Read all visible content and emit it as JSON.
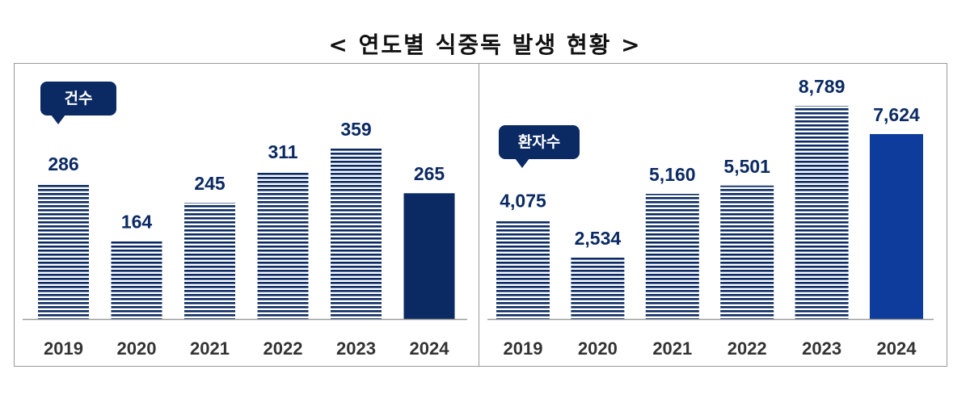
{
  "title": "< 연도별 식중독 발생 현황 >",
  "colors": {
    "bar": "#0b2a63",
    "highlight_left": "#0b2a63",
    "highlight_right": "#0d3c9c",
    "axis": "#9a9a9a"
  },
  "chart_data": [
    {
      "type": "bar",
      "badge": "건수",
      "categories": [
        "2019",
        "2020",
        "2021",
        "2022",
        "2023",
        "2024"
      ],
      "values": [
        286,
        164,
        245,
        311,
        359,
        265
      ],
      "value_labels": [
        "286",
        "164",
        "245",
        "311",
        "359",
        "265"
      ],
      "highlight_category": "2024",
      "grid": false
    },
    {
      "type": "bar",
      "badge": "환자수",
      "categories": [
        "2019",
        "2020",
        "2021",
        "2022",
        "2023",
        "2024"
      ],
      "values": [
        4075,
        2534,
        5160,
        5501,
        8789,
        7624
      ],
      "value_labels": [
        "4,075",
        "2,534",
        "5,160",
        "5,501",
        "8,789",
        "7,624"
      ],
      "highlight_category": "2024",
      "grid": false
    }
  ]
}
